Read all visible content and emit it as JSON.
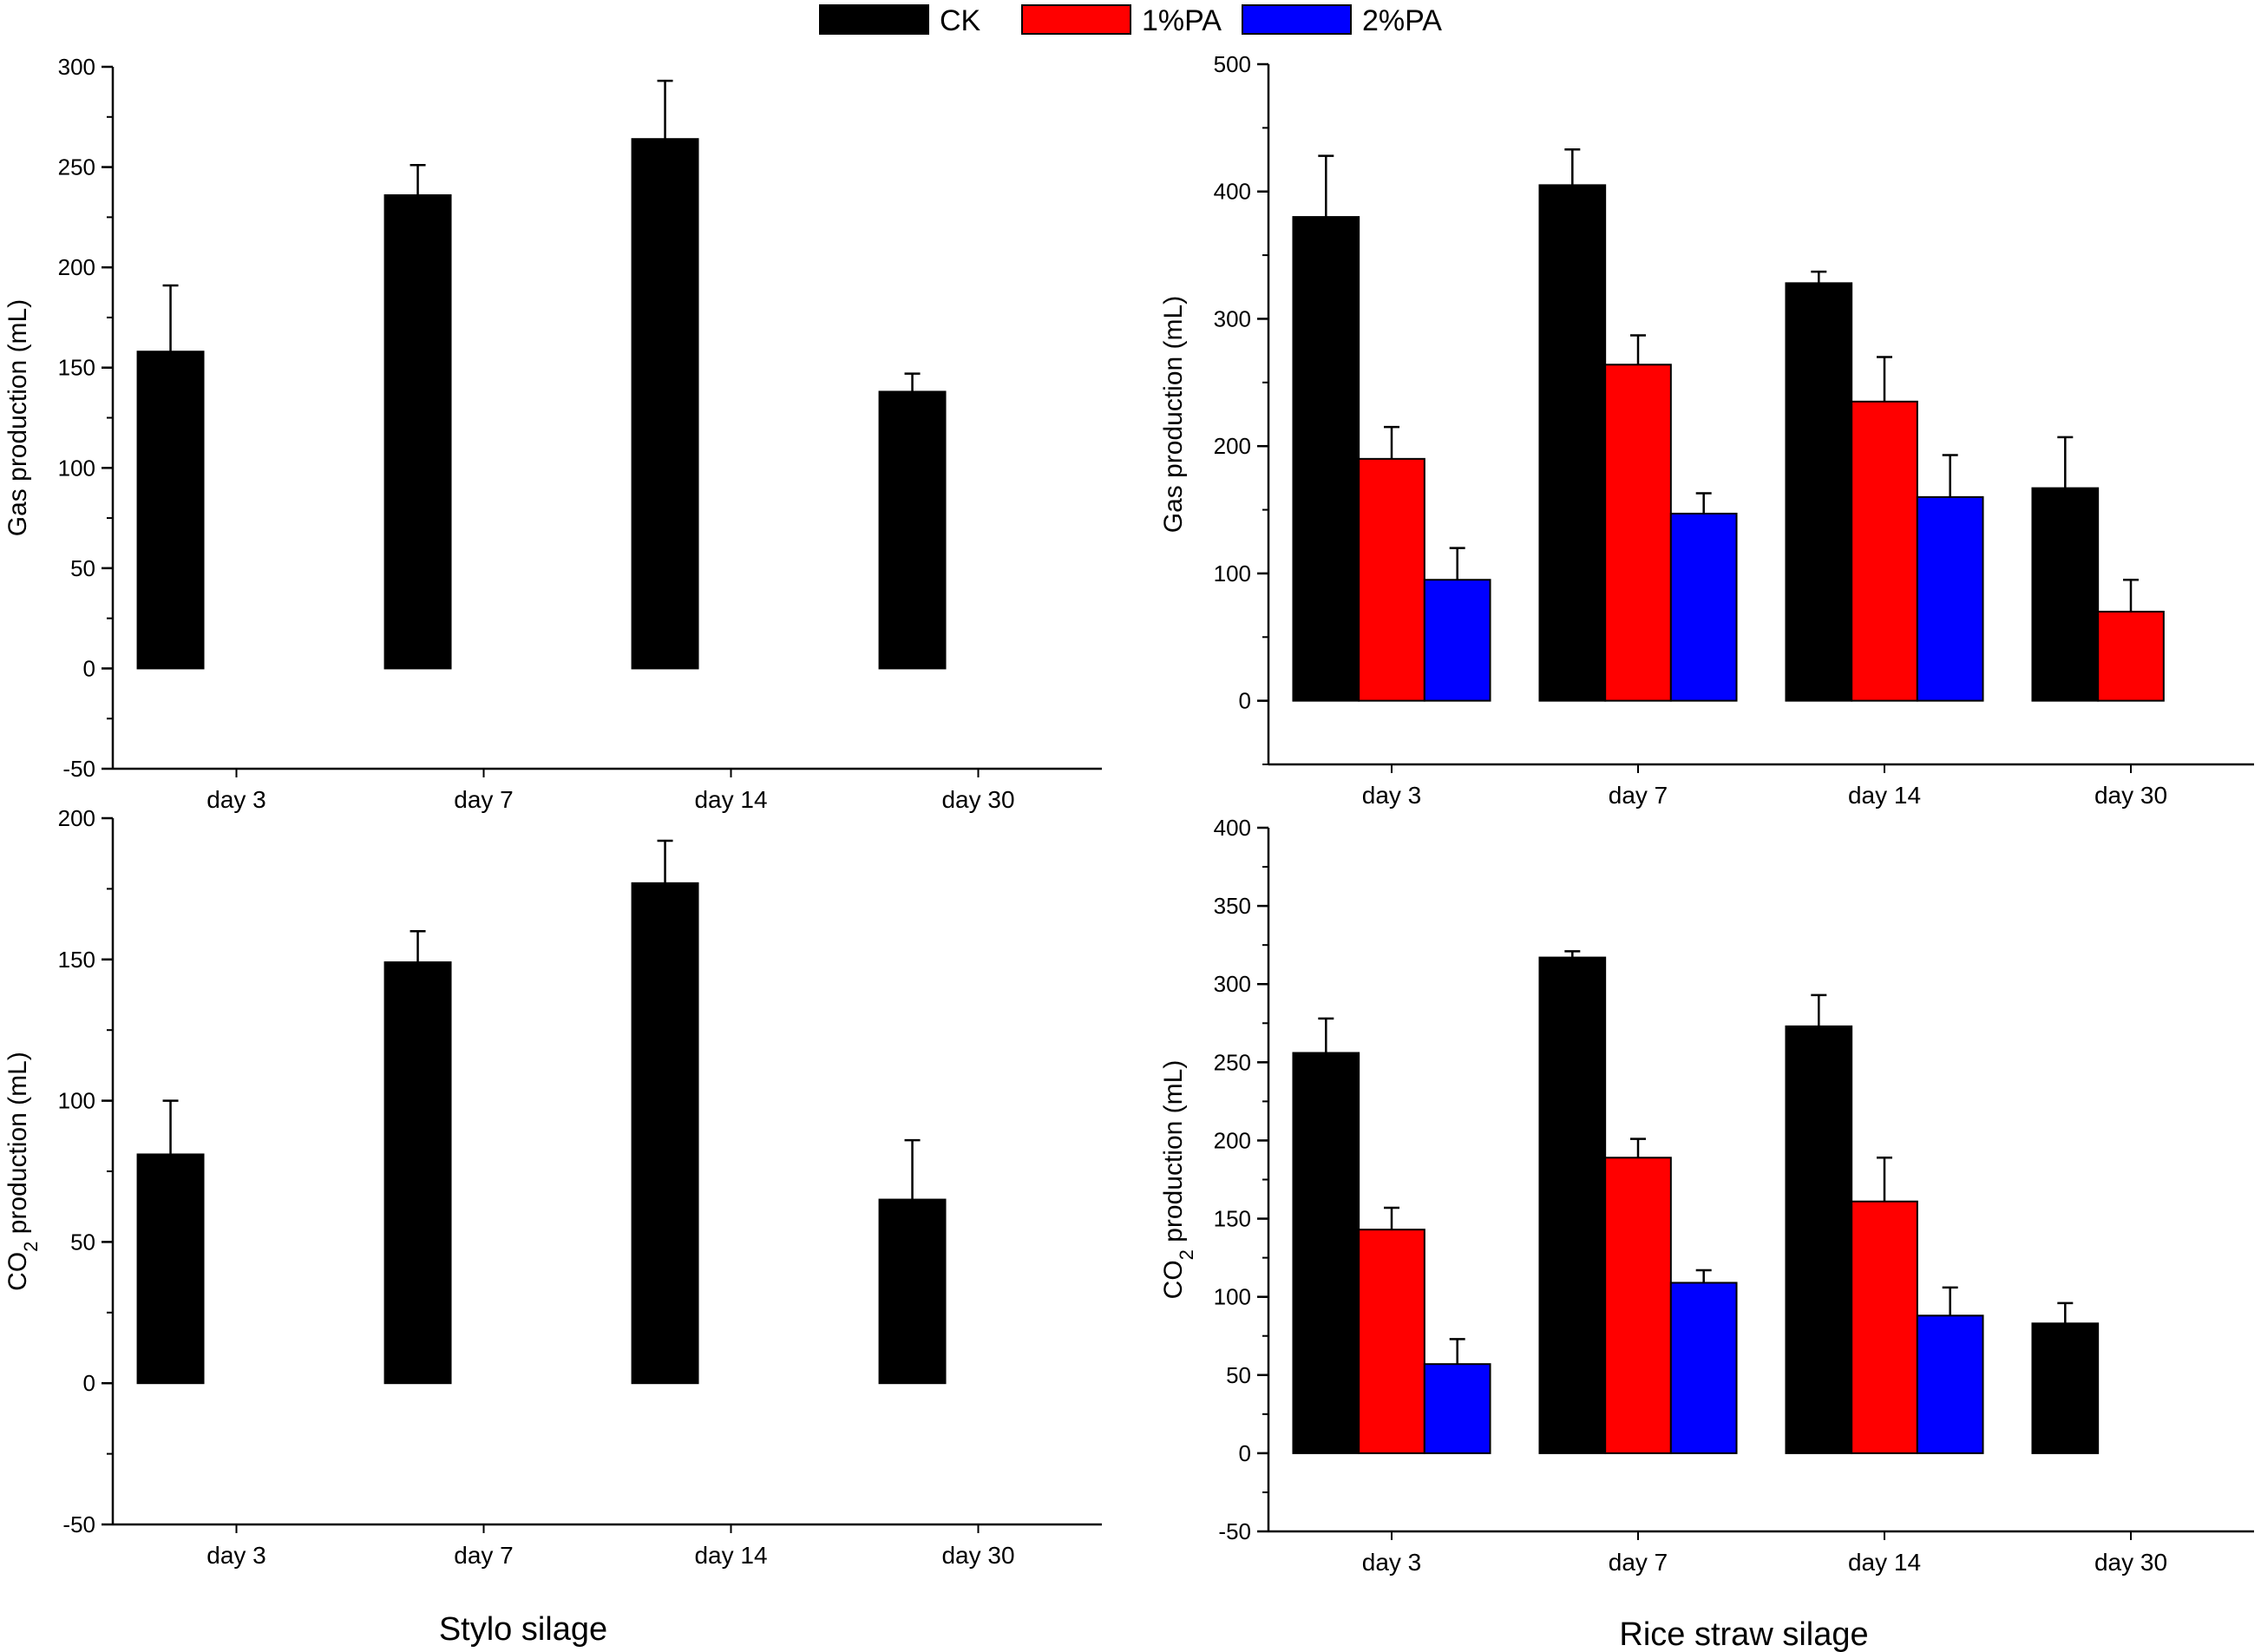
{
  "legend": [
    {
      "key": "ck",
      "label": "CK",
      "color": "#000000"
    },
    {
      "key": "pa1",
      "label": "1%PA",
      "color": "#ff0000"
    },
    {
      "key": "pa2",
      "label": "2%PA",
      "color": "#0000ff"
    }
  ],
  "captions": {
    "left": "Stylo silage",
    "right": "Rice straw silage"
  },
  "chart_data": [
    {
      "id": "stylo-gas",
      "type": "bar",
      "group": "Stylo silage",
      "title": "",
      "xlabel": "",
      "ylabel_main": "Gas production (mL)",
      "ylabel_sub": "",
      "ylabel_rest": "",
      "ylim": [
        -50,
        300
      ],
      "yticks": [
        -50,
        0,
        50,
        100,
        150,
        200,
        250,
        300
      ],
      "categories": [
        "day 3",
        "day 7",
        "day 14",
        "day 30"
      ],
      "series": [
        {
          "name": "CK",
          "color": "#000000",
          "values": [
            158,
            236,
            264,
            138
          ],
          "errors": [
            33,
            15,
            29,
            9
          ]
        },
        {
          "name": "1%PA",
          "color": "#ff0000",
          "values": [
            0,
            0,
            0,
            0
          ],
          "errors": [
            0,
            0,
            0,
            0
          ]
        },
        {
          "name": "2%PA",
          "color": "#0000ff",
          "values": [
            0,
            0,
            0,
            0
          ],
          "errors": [
            0,
            0,
            0,
            0
          ]
        }
      ]
    },
    {
      "id": "rice-gas",
      "type": "bar",
      "group": "Rice straw silage",
      "title": "",
      "xlabel": "",
      "ylabel_main": "Gas production (mL)",
      "ylabel_sub": "",
      "ylabel_rest": "",
      "ylim": [
        -50,
        500
      ],
      "yticks": [
        0,
        100,
        200,
        300,
        400,
        500
      ],
      "categories": [
        "day 3",
        "day 7",
        "day 14",
        "day 30"
      ],
      "series": [
        {
          "name": "CK",
          "color": "#000000",
          "values": [
            380,
            405,
            328,
            167
          ],
          "errors": [
            48,
            28,
            9,
            40
          ]
        },
        {
          "name": "1%PA",
          "color": "#ff0000",
          "values": [
            190,
            264,
            235,
            70
          ],
          "errors": [
            25,
            23,
            35,
            25
          ]
        },
        {
          "name": "2%PA",
          "color": "#0000ff",
          "values": [
            95,
            147,
            160,
            0
          ],
          "errors": [
            25,
            16,
            33,
            0
          ]
        }
      ]
    },
    {
      "id": "stylo-co2",
      "type": "bar",
      "group": "Stylo silage",
      "title": "",
      "xlabel": "",
      "ylabel_main": "CO",
      "ylabel_sub": "2",
      "ylabel_rest": " production (mL)",
      "ylim": [
        -50,
        200
      ],
      "yticks": [
        -50,
        0,
        50,
        100,
        150,
        200
      ],
      "categories": [
        "day 3",
        "day 7",
        "day 14",
        "day 30"
      ],
      "series": [
        {
          "name": "CK",
          "color": "#000000",
          "values": [
            81,
            149,
            177,
            65
          ],
          "errors": [
            19,
            11,
            15,
            21
          ]
        },
        {
          "name": "1%PA",
          "color": "#ff0000",
          "values": [
            0,
            0,
            0,
            0
          ],
          "errors": [
            0,
            0,
            0,
            0
          ]
        },
        {
          "name": "2%PA",
          "color": "#0000ff",
          "values": [
            0,
            0,
            0,
            0
          ],
          "errors": [
            0,
            0,
            0,
            0
          ]
        }
      ]
    },
    {
      "id": "rice-co2",
      "type": "bar",
      "group": "Rice straw silage",
      "title": "",
      "xlabel": "",
      "ylabel_main": "CO",
      "ylabel_sub": "2",
      "ylabel_rest": " production (mL)",
      "ylim": [
        -50,
        400
      ],
      "yticks": [
        -50,
        0,
        50,
        100,
        150,
        200,
        250,
        300,
        350,
        400
      ],
      "categories": [
        "day 3",
        "day 7",
        "day 14",
        "day 30"
      ],
      "series": [
        {
          "name": "CK",
          "color": "#000000",
          "values": [
            256,
            317,
            273,
            83
          ],
          "errors": [
            22,
            4,
            20,
            13
          ]
        },
        {
          "name": "1%PA",
          "color": "#ff0000",
          "values": [
            143,
            189,
            161,
            0
          ],
          "errors": [
            14,
            12,
            28,
            0
          ]
        },
        {
          "name": "2%PA",
          "color": "#0000ff",
          "values": [
            57,
            109,
            88,
            0
          ],
          "errors": [
            16,
            8,
            18,
            0
          ]
        }
      ]
    }
  ]
}
